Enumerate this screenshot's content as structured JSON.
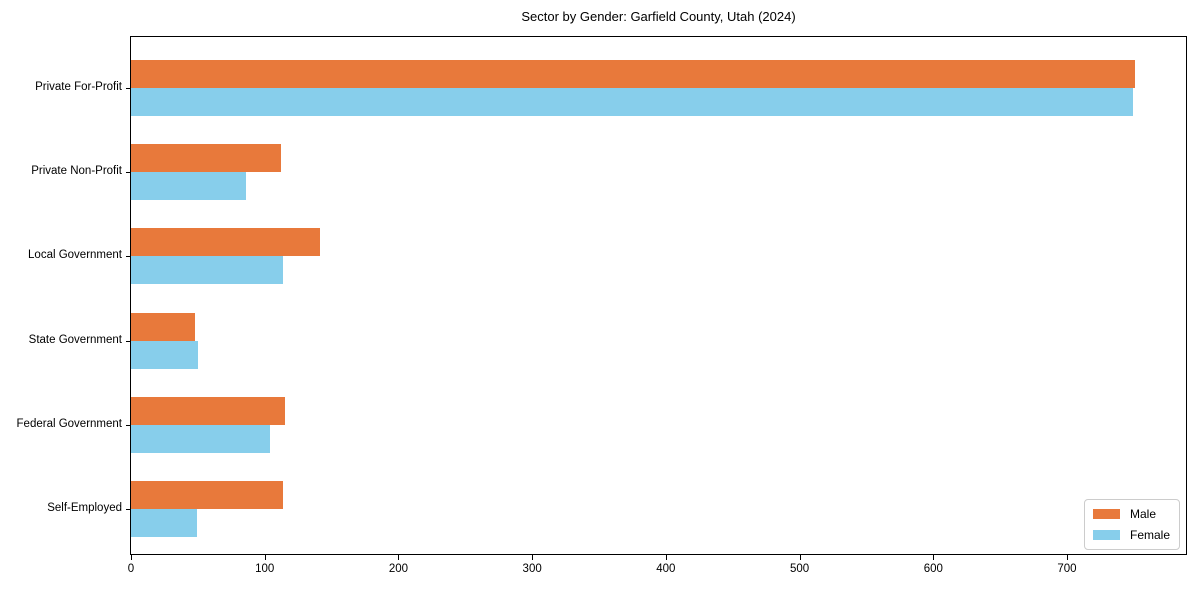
{
  "figure": {
    "background": "#ffffff",
    "text_color": "#000000"
  },
  "chart_data": {
    "type": "bar",
    "orientation": "horizontal",
    "title": "Sector by Gender: Garfield County, Utah (2024)",
    "categories": [
      "Private For-Profit",
      "Private Non-Profit",
      "Local Government",
      "State Government",
      "Federal Government",
      "Self-Employed"
    ],
    "series": [
      {
        "name": "Male",
        "color": "#e8793b",
        "values": [
          751,
          112,
          141,
          48,
          115,
          114
        ]
      },
      {
        "name": "Female",
        "color": "#87ceeb",
        "values": [
          749,
          86,
          114,
          50,
          104,
          49
        ]
      }
    ],
    "xlabel": "",
    "ylabel": "",
    "xlim": [
      0,
      789
    ],
    "x_ticks": [
      0,
      100,
      200,
      300,
      400,
      500,
      600,
      700
    ],
    "grid": false,
    "legend": {
      "position": "lower right",
      "entries": [
        "Male",
        "Female"
      ]
    }
  }
}
